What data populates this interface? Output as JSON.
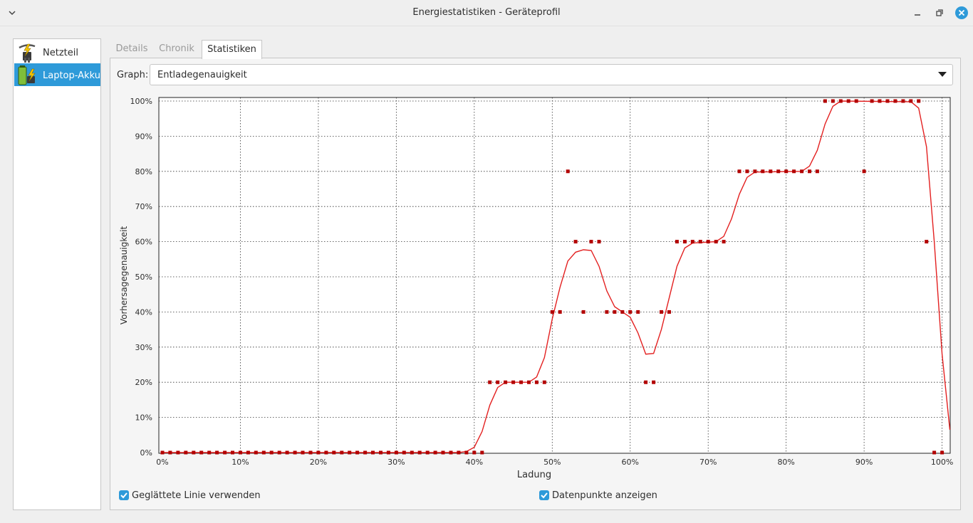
{
  "window": {
    "title": "Energiestatistiken - Geräteprofil"
  },
  "sidebar": {
    "items": [
      {
        "label": "Netzteil",
        "icon": "ac-adapter-icon",
        "selected": false
      },
      {
        "label": "Laptop-Akku",
        "icon": "battery-icon",
        "selected": true
      }
    ]
  },
  "tabs": [
    {
      "label": "Details",
      "active": false
    },
    {
      "label": "Chronik",
      "active": false
    },
    {
      "label": "Statistiken",
      "active": true
    }
  ],
  "graph_selector": {
    "label": "Graph:",
    "value": "Entladegenauigkeit"
  },
  "checkboxes": [
    {
      "label": "Geglättete Linie verwenden",
      "checked": true
    },
    {
      "label": "Datenpunkte anzeigen",
      "checked": true
    }
  ],
  "colors": {
    "accent": "#2e9ad9",
    "series": "#e32020",
    "point": "#b30000"
  },
  "chart_data": {
    "type": "line",
    "xlabel": "Ladung",
    "ylabel": "Vorhersagegenauigkeit",
    "xlim": [
      0,
      100
    ],
    "ylim": [
      0,
      100
    ],
    "x_ticks": [
      "0%",
      "10%",
      "20%",
      "30%",
      "40%",
      "50%",
      "60%",
      "70%",
      "80%",
      "90%",
      "100%"
    ],
    "y_ticks": [
      "0%",
      "10%",
      "20%",
      "30%",
      "40%",
      "50%",
      "60%",
      "70%",
      "80%",
      "90%",
      "100%"
    ],
    "grid": true,
    "points": [
      [
        0,
        0
      ],
      [
        1,
        0
      ],
      [
        2,
        0
      ],
      [
        3,
        0
      ],
      [
        4,
        0
      ],
      [
        5,
        0
      ],
      [
        6,
        0
      ],
      [
        7,
        0
      ],
      [
        8,
        0
      ],
      [
        9,
        0
      ],
      [
        10,
        0
      ],
      [
        11,
        0
      ],
      [
        12,
        0
      ],
      [
        13,
        0
      ],
      [
        14,
        0
      ],
      [
        15,
        0
      ],
      [
        16,
        0
      ],
      [
        17,
        0
      ],
      [
        18,
        0
      ],
      [
        19,
        0
      ],
      [
        20,
        0
      ],
      [
        21,
        0
      ],
      [
        22,
        0
      ],
      [
        23,
        0
      ],
      [
        24,
        0
      ],
      [
        25,
        0
      ],
      [
        26,
        0
      ],
      [
        27,
        0
      ],
      [
        28,
        0
      ],
      [
        29,
        0
      ],
      [
        30,
        0
      ],
      [
        31,
        0
      ],
      [
        32,
        0
      ],
      [
        33,
        0
      ],
      [
        34,
        0
      ],
      [
        35,
        0
      ],
      [
        36,
        0
      ],
      [
        37,
        0
      ],
      [
        38,
        0
      ],
      [
        39,
        0
      ],
      [
        40,
        0
      ],
      [
        41,
        0
      ],
      [
        42,
        20
      ],
      [
        43,
        20
      ],
      [
        44,
        20
      ],
      [
        45,
        20
      ],
      [
        46,
        20
      ],
      [
        47,
        20
      ],
      [
        48,
        20
      ],
      [
        49,
        20
      ],
      [
        50,
        40
      ],
      [
        51,
        40
      ],
      [
        52,
        80
      ],
      [
        53,
        60
      ],
      [
        54,
        40
      ],
      [
        55,
        60
      ],
      [
        56,
        60
      ],
      [
        57,
        40
      ],
      [
        58,
        40
      ],
      [
        59,
        40
      ],
      [
        60,
        40
      ],
      [
        61,
        40
      ],
      [
        62,
        20
      ],
      [
        63,
        20
      ],
      [
        64,
        40
      ],
      [
        65,
        40
      ],
      [
        66,
        60
      ],
      [
        67,
        60
      ],
      [
        68,
        60
      ],
      [
        69,
        60
      ],
      [
        70,
        60
      ],
      [
        71,
        60
      ],
      [
        72,
        60
      ],
      [
        74,
        80
      ],
      [
        75,
        80
      ],
      [
        76,
        80
      ],
      [
        77,
        80
      ],
      [
        78,
        80
      ],
      [
        79,
        80
      ],
      [
        80,
        80
      ],
      [
        81,
        80
      ],
      [
        82,
        80
      ],
      [
        83,
        80
      ],
      [
        84,
        80
      ],
      [
        85,
        100
      ],
      [
        86,
        100
      ],
      [
        87,
        100
      ],
      [
        88,
        100
      ],
      [
        89,
        100
      ],
      [
        90,
        80
      ],
      [
        91,
        100
      ],
      [
        92,
        100
      ],
      [
        93,
        100
      ],
      [
        94,
        100
      ],
      [
        95,
        100
      ],
      [
        96,
        100
      ],
      [
        97,
        100
      ],
      [
        98,
        60
      ],
      [
        99,
        0
      ],
      [
        100,
        0
      ]
    ],
    "smoothed": [
      [
        0,
        0
      ],
      [
        38,
        0
      ],
      [
        39,
        0.3
      ],
      [
        40,
        1.5
      ],
      [
        41,
        6
      ],
      [
        42,
        13.5
      ],
      [
        43,
        18.5
      ],
      [
        44,
        20
      ],
      [
        47,
        20
      ],
      [
        48,
        21.5
      ],
      [
        49,
        27
      ],
      [
        50,
        38
      ],
      [
        51,
        47
      ],
      [
        52,
        54.5
      ],
      [
        53,
        57
      ],
      [
        54,
        57.7
      ],
      [
        55,
        57.5
      ],
      [
        56,
        53
      ],
      [
        57,
        46
      ],
      [
        58,
        41.5
      ],
      [
        59,
        40
      ],
      [
        60,
        38.5
      ],
      [
        61,
        34
      ],
      [
        62,
        28
      ],
      [
        63,
        28.2
      ],
      [
        64,
        35
      ],
      [
        65,
        44
      ],
      [
        66,
        53
      ],
      [
        67,
        58.2
      ],
      [
        68,
        59.6
      ],
      [
        71,
        60
      ],
      [
        72,
        61.5
      ],
      [
        73,
        66.5
      ],
      [
        74,
        73.5
      ],
      [
        75,
        78.3
      ],
      [
        76,
        79.8
      ],
      [
        82,
        80
      ],
      [
        83,
        81.5
      ],
      [
        84,
        86
      ],
      [
        85,
        93.5
      ],
      [
        86,
        98.5
      ],
      [
        87,
        100
      ],
      [
        96,
        99.8
      ],
      [
        97,
        98
      ],
      [
        98,
        87
      ],
      [
        99,
        60
      ],
      [
        100,
        28
      ],
      [
        101,
        6.5
      ]
    ]
  }
}
